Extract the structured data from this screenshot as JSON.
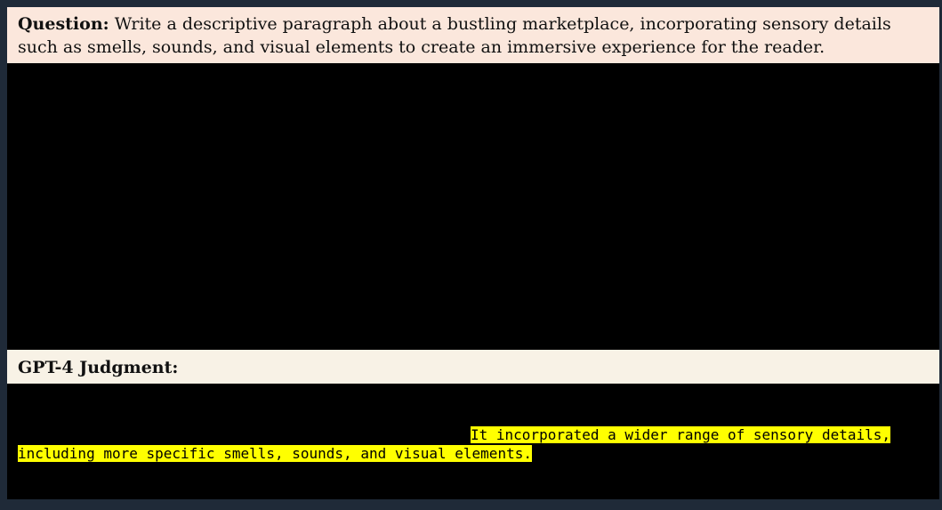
{
  "question": {
    "label": "Question:",
    "text": " Write a descriptive paragraph about a bustling marketplace, incorporating sensory details such as smells, sounds, and visual elements to create an immersive experience for the reader."
  },
  "judgment": {
    "title": "GPT-4 Judgment:",
    "highlight_line1": "It incorporated a wider range of sensory details,",
    "highlight_line2": "including more specific smells, sounds, and visual elements."
  }
}
